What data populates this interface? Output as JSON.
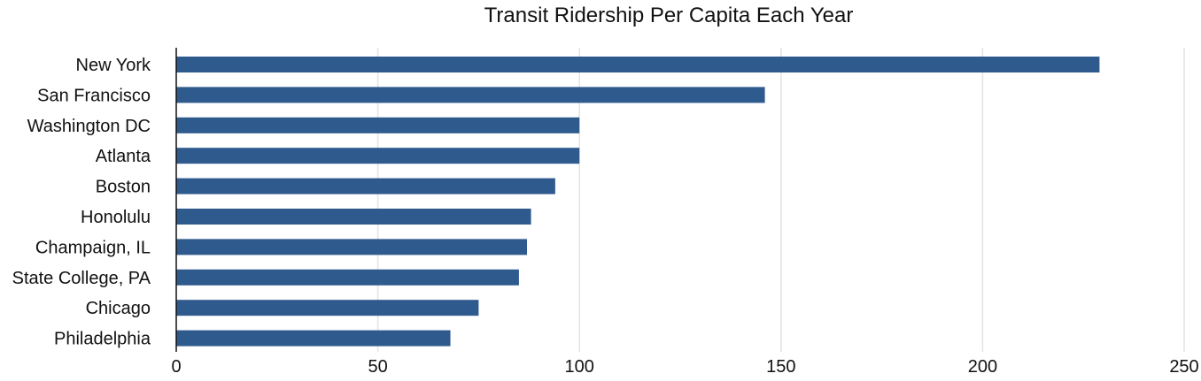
{
  "chart_data": {
    "type": "bar",
    "orientation": "horizontal",
    "title": "Transit Ridership Per Capita Each Year",
    "xlabel": "",
    "ylabel": "",
    "categories": [
      "New York",
      "San Francisco",
      "Washington DC",
      "Atlanta",
      "Boston",
      "Honolulu",
      "Champaign, IL",
      "State College, PA",
      "Chicago",
      "Philadelphia"
    ],
    "values": [
      229,
      146,
      100,
      100,
      94,
      88,
      87,
      85,
      75,
      68
    ],
    "xlim": [
      0,
      250
    ],
    "xticks": [
      0,
      50,
      100,
      150,
      200,
      250
    ],
    "grid": "vertical",
    "legend": "none",
    "bar_color": "#2f5a8e"
  }
}
